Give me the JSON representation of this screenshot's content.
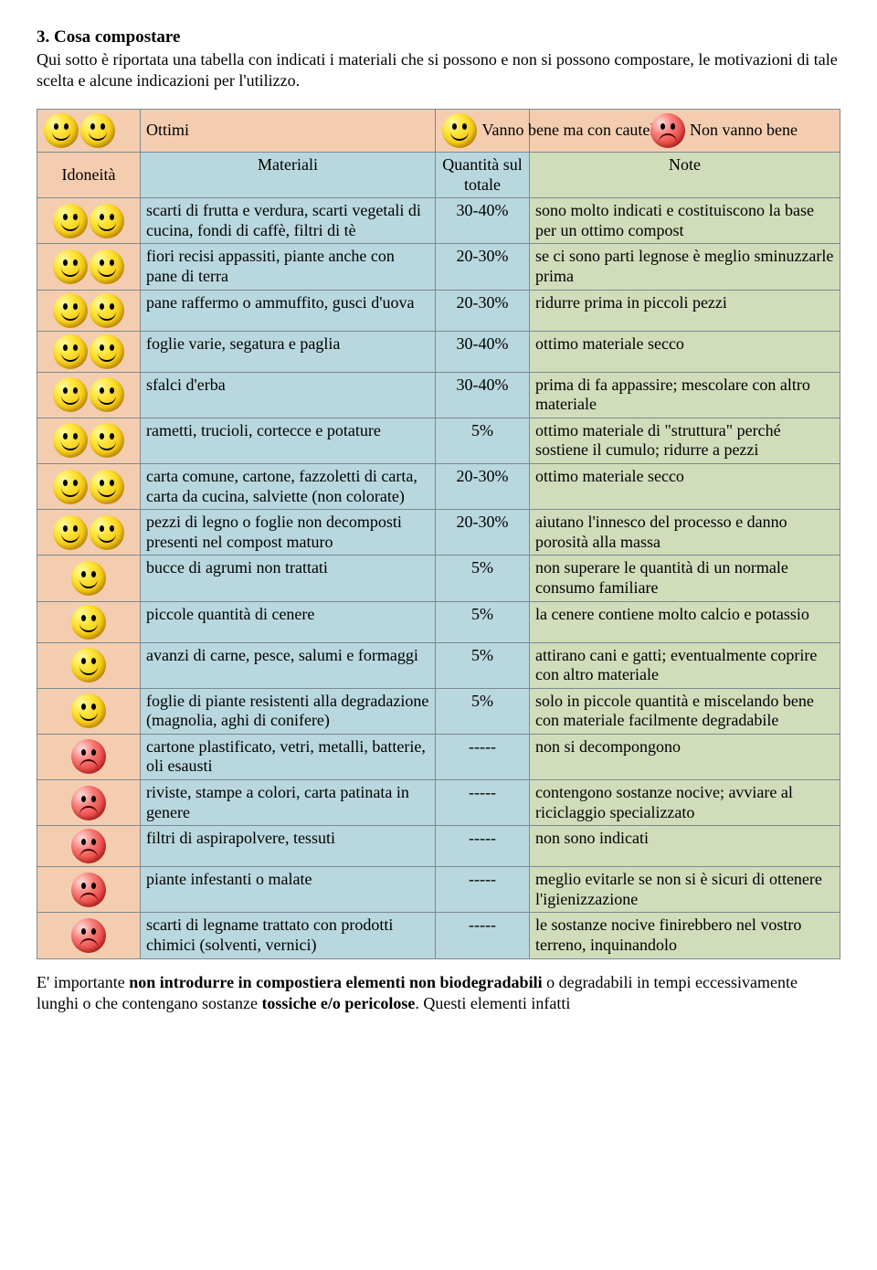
{
  "title": "3. Cosa compostare",
  "intro": "Qui sotto è riportata una tabella con indicati i materiali che si possono e non si possono compostare, le motivazioni di tale scelta e alcune indicazioni per l'utilizzo.",
  "legend": {
    "ottimi": "Ottimi",
    "cautela": "Vanno bene ma con cautela",
    "nonvanno": "Non vanno bene"
  },
  "headers": {
    "idoneita": "Idoneità",
    "materiali": "Materiali",
    "quantita": "Quantità sul totale",
    "note": "Note"
  },
  "rows": [
    {
      "rating": 2,
      "materiali": "scarti di frutta e verdura, scarti vegetali di cucina, fondi di caffè, filtri di tè",
      "qty": "30-40%",
      "note": "sono molto indicati e costituiscono la base per un ottimo compost"
    },
    {
      "rating": 2,
      "materiali": "fiori recisi appassiti, piante anche con pane di terra",
      "qty": "20-30%",
      "note": "se ci sono parti legnose è meglio sminuzzarle prima"
    },
    {
      "rating": 2,
      "materiali": "pane raffermo o ammuffito, gusci d'uova",
      "qty": "20-30%",
      "note": "ridurre prima in piccoli pezzi"
    },
    {
      "rating": 2,
      "materiali": "foglie varie, segatura e paglia",
      "qty": "30-40%",
      "note": "ottimo materiale secco"
    },
    {
      "rating": 2,
      "materiali": "sfalci d'erba",
      "qty": "30-40%",
      "note": "prima di fa appassire; mescolare con altro materiale"
    },
    {
      "rating": 2,
      "materiali": "rametti, trucioli, cortecce e potature",
      "qty": "5%",
      "note": "ottimo materiale di \"struttura\" perché sostiene il cumulo; ridurre a pezzi"
    },
    {
      "rating": 2,
      "materiali": "carta comune, cartone, fazzoletti di carta, carta da cucina, salviette (non colorate)",
      "qty": "20-30%",
      "note": "ottimo materiale secco"
    },
    {
      "rating": 2,
      "materiali": "pezzi di legno o foglie non decomposti presenti nel compost maturo",
      "qty": "20-30%",
      "note": "aiutano l'innesco del processo e danno porosità alla massa"
    },
    {
      "rating": 1,
      "materiali": "bucce di agrumi non trattati",
      "qty": "5%",
      "note": "non superare le quantità di un normale consumo familiare"
    },
    {
      "rating": 1,
      "materiali": "piccole quantità di cenere",
      "qty": "5%",
      "note": "la cenere contiene molto calcio e potassio"
    },
    {
      "rating": 1,
      "materiali": "avanzi di carne, pesce, salumi e formaggi",
      "qty": "5%",
      "note": "attirano cani e gatti; eventualmente coprire con altro materiale"
    },
    {
      "rating": 1,
      "materiali": "foglie di piante resistenti alla degradazione (magnolia, aghi di conifere)",
      "qty": "5%",
      "note": "solo in piccole quantità e miscelando bene con materiale facilmente degradabile"
    },
    {
      "rating": 0,
      "materiali": "cartone plastificato, vetri, metalli, batterie, oli esausti",
      "qty": "-----",
      "note": "non si decompongono"
    },
    {
      "rating": 0,
      "materiali": "riviste, stampe a colori, carta patinata in genere",
      "qty": "-----",
      "note": "contengono sostanze nocive; avviare al riciclaggio specializzato"
    },
    {
      "rating": 0,
      "materiali": "filtri di aspirapolvere, tessuti",
      "qty": "-----",
      "note": "non sono indicati"
    },
    {
      "rating": 0,
      "materiali": "piante infestanti o malate",
      "qty": "-----",
      "note": "meglio evitarle se non si è sicuri di ottenere l'igienizzazione"
    },
    {
      "rating": 0,
      "materiali": "scarti di legname trattato con prodotti chimici (solventi, vernici)",
      "qty": "-----",
      "note": "le sostanze nocive finirebbero nel vostro terreno, inquinandolo"
    }
  ],
  "footer_parts": {
    "p1": "E' importante ",
    "b1": "non introdurre in compostiera elementi non biodegradabili",
    "p2": " o degradabili in tempi eccessivamente lunghi o che contengano sostanze ",
    "b2": "tossiche e/o pericolose",
    "p3": ". Questi elementi infatti"
  },
  "colors": {
    "peach": "#f4cdb0",
    "blue": "#b9d7de",
    "green": "#d1dcbb",
    "border": "#7a8a8f"
  }
}
